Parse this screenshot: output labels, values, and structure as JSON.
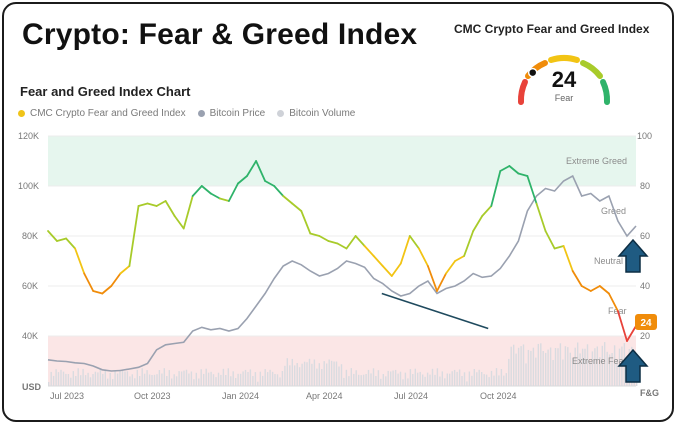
{
  "header": {
    "title": "Crypto: Fear & Greed Index",
    "chart_title": "Fear and Greed Index Chart"
  },
  "gauge": {
    "title": "CMC Crypto Fear and Greed Index",
    "value": "24",
    "label": "Fear",
    "fraction": 0.24
  },
  "legend": [
    {
      "label": "CMC Crypto Fear and Greed Index",
      "color": "#f0c419"
    },
    {
      "label": "Bitcoin Price",
      "color": "#9aa1b0"
    },
    {
      "label": "Bitcoin Volume",
      "color": "#cfd2d8"
    }
  ],
  "badge": {
    "value": "24",
    "color": "#f08c0a"
  },
  "chart_data": {
    "type": "line",
    "left_axis": {
      "unit": "USD",
      "ticks": [
        "40K",
        "60K",
        "80K",
        "100K",
        "120K"
      ],
      "range": [
        20000,
        120000
      ]
    },
    "right_axis": {
      "unit": "F&G",
      "ticks": [
        "20",
        "40",
        "60",
        "80",
        "100"
      ],
      "range": [
        0,
        100
      ]
    },
    "x_ticks": [
      "Jul 2023",
      "Oct 2023",
      "Jan 2024",
      "Apr 2024",
      "Jul 2024",
      "Oct 2024"
    ],
    "zones": [
      "Extreme Greed",
      "Greed",
      "Neutral",
      "Fear",
      "Extreme Fear"
    ],
    "fear_greed": [
      [
        0,
        62
      ],
      [
        1,
        58
      ],
      [
        2,
        59
      ],
      [
        3,
        55
      ],
      [
        4,
        45
      ],
      [
        5,
        38
      ],
      [
        6,
        37
      ],
      [
        7,
        40
      ],
      [
        8,
        45
      ],
      [
        9,
        48
      ],
      [
        10,
        72
      ],
      [
        11,
        73
      ],
      [
        12,
        72
      ],
      [
        13,
        74
      ],
      [
        14,
        68
      ],
      [
        15,
        63
      ],
      [
        16,
        76
      ],
      [
        17,
        80
      ],
      [
        18,
        77
      ],
      [
        19,
        75
      ],
      [
        20,
        74
      ],
      [
        21,
        81
      ],
      [
        22,
        84
      ],
      [
        23,
        90
      ],
      [
        24,
        82
      ],
      [
        25,
        80
      ],
      [
        26,
        76
      ],
      [
        27,
        73
      ],
      [
        28,
        70
      ],
      [
        29,
        61
      ],
      [
        30,
        60
      ],
      [
        31,
        58
      ],
      [
        32,
        57
      ],
      [
        33,
        55
      ],
      [
        34,
        60
      ],
      [
        35,
        56
      ],
      [
        36,
        52
      ],
      [
        37,
        48
      ],
      [
        38,
        44
      ],
      [
        39,
        49
      ],
      [
        40,
        60
      ],
      [
        41,
        55
      ],
      [
        42,
        48
      ],
      [
        43,
        38
      ],
      [
        44,
        45
      ],
      [
        45,
        50
      ],
      [
        46,
        52
      ],
      [
        47,
        62
      ],
      [
        48,
        68
      ],
      [
        49,
        72
      ],
      [
        50,
        86
      ],
      [
        51,
        88
      ],
      [
        52,
        85
      ],
      [
        53,
        84
      ],
      [
        54,
        73
      ],
      [
        55,
        62
      ],
      [
        56,
        55
      ],
      [
        57,
        56
      ],
      [
        58,
        46
      ],
      [
        59,
        40
      ],
      [
        60,
        38
      ],
      [
        61,
        40
      ],
      [
        62,
        37
      ],
      [
        63,
        30
      ],
      [
        64,
        18
      ],
      [
        65,
        24
      ]
    ],
    "bitcoin_price": [
      [
        0,
        30500
      ],
      [
        1,
        30000
      ],
      [
        2,
        29800
      ],
      [
        3,
        29300
      ],
      [
        4,
        29000
      ],
      [
        5,
        28000
      ],
      [
        6,
        26500
      ],
      [
        7,
        26000
      ],
      [
        8,
        26200
      ],
      [
        9,
        26800
      ],
      [
        10,
        27500
      ],
      [
        11,
        29000
      ],
      [
        12,
        34500
      ],
      [
        13,
        36500
      ],
      [
        14,
        37000
      ],
      [
        15,
        37500
      ],
      [
        16,
        42000
      ],
      [
        17,
        43500
      ],
      [
        18,
        42500
      ],
      [
        19,
        43000
      ],
      [
        20,
        42000
      ],
      [
        21,
        43000
      ],
      [
        22,
        47000
      ],
      [
        23,
        52000
      ],
      [
        24,
        57000
      ],
      [
        25,
        63000
      ],
      [
        26,
        68000
      ],
      [
        27,
        70000
      ],
      [
        28,
        68500
      ],
      [
        29,
        66000
      ],
      [
        30,
        64000
      ],
      [
        31,
        65000
      ],
      [
        32,
        67000
      ],
      [
        33,
        70000
      ],
      [
        34,
        69000
      ],
      [
        35,
        67500
      ],
      [
        36,
        63000
      ],
      [
        37,
        61000
      ],
      [
        38,
        58000
      ],
      [
        39,
        56000
      ],
      [
        40,
        57000
      ],
      [
        41,
        60000
      ],
      [
        42,
        62000
      ],
      [
        43,
        57000
      ],
      [
        44,
        59000
      ],
      [
        45,
        60000
      ],
      [
        46,
        62000
      ],
      [
        47,
        65000
      ],
      [
        48,
        63500
      ],
      [
        49,
        64000
      ],
      [
        50,
        67000
      ],
      [
        51,
        72000
      ],
      [
        52,
        78000
      ],
      [
        53,
        90000
      ],
      [
        54,
        96000
      ],
      [
        55,
        99000
      ],
      [
        56,
        98000
      ],
      [
        57,
        102000
      ],
      [
        58,
        104000
      ],
      [
        59,
        96000
      ],
      [
        60,
        97000
      ],
      [
        61,
        94000
      ],
      [
        62,
        96000
      ],
      [
        63,
        86000
      ],
      [
        64,
        80000
      ],
      [
        65,
        84000
      ]
    ],
    "trendline": "Fear & Greed lows, Jun 2024 – Sep 2024"
  }
}
